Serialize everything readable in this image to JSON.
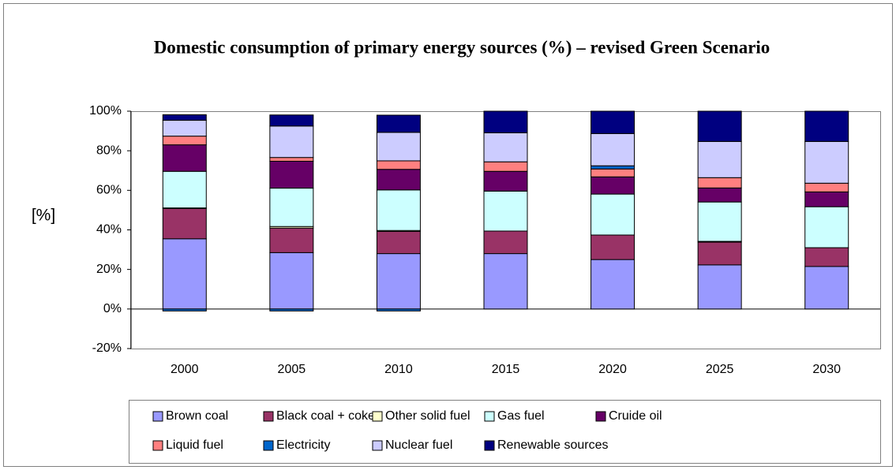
{
  "chart_data": {
    "type": "stacked_bar",
    "title": "Domestic consumption of primary energy sources (%) – revised Green Scenario",
    "y_label": "[%]",
    "categories": [
      "2000",
      "2005",
      "2010",
      "2015",
      "2020",
      "2025",
      "2030"
    ],
    "series": [
      {
        "name": "Brown coal",
        "color": "#9999ff",
        "values": [
          35.5,
          28.5,
          28,
          28,
          25,
          22.3,
          21.5
        ]
      },
      {
        "name": "Black coal + coke",
        "color": "#993366",
        "values": [
          15.3,
          12.4,
          11.2,
          11.4,
          12.4,
          11.5,
          9.5
        ]
      },
      {
        "name": "Other solid fuel",
        "color": "#ffffcc",
        "values": [
          0.3,
          0.8,
          0.5,
          0,
          0,
          0.4,
          0
        ]
      },
      {
        "name": "Gas fuel",
        "color": "#ccffff",
        "values": [
          18.5,
          19.4,
          20.5,
          20.2,
          20.7,
          19.9,
          20.7
        ]
      },
      {
        "name": "Cruide oil",
        "color": "#660066",
        "values": [
          13.4,
          13.6,
          10.4,
          10,
          8.7,
          7.1,
          7.5
        ]
      },
      {
        "name": "Liquid fuel",
        "color": "#ff8080",
        "values": [
          4.4,
          1.9,
          4.3,
          4.8,
          4,
          5.2,
          4.4
        ]
      },
      {
        "name": "Electricity",
        "color": "#0066cc",
        "values": [
          -1,
          -1,
          -1,
          0,
          1.6,
          0,
          0
        ]
      },
      {
        "name": "Nuclear fuel",
        "color": "#ccccff",
        "values": [
          8,
          15.9,
          14.4,
          14.7,
          16.3,
          18.3,
          21.1
        ]
      },
      {
        "name": "Renewable sources",
        "color": "#000080",
        "values": [
          2.8,
          5.6,
          8.7,
          10.9,
          11.3,
          15.3,
          15.3
        ]
      }
    ],
    "ylim": [
      -20,
      100
    ],
    "yticks": [
      {
        "value": -20,
        "label": "-20%"
      },
      {
        "value": 0,
        "label": "0%"
      },
      {
        "value": 20,
        "label": "20%"
      },
      {
        "value": 40,
        "label": "40%"
      },
      {
        "value": 60,
        "label": "60%"
      },
      {
        "value": 80,
        "label": "80%"
      },
      {
        "value": 100,
        "label": "100%"
      }
    ],
    "legend": "bottom"
  }
}
